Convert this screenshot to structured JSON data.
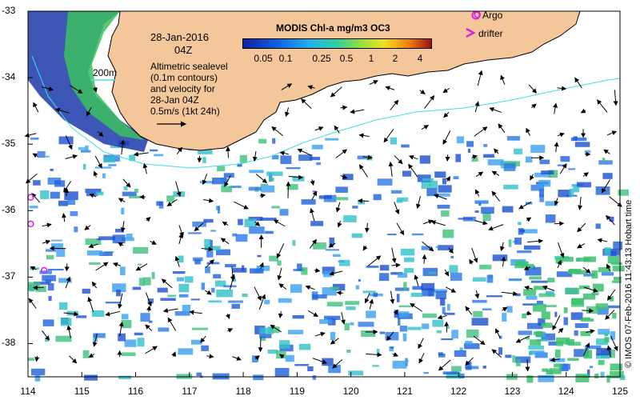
{
  "map": {
    "date_label": "28-Jan-2016",
    "time_label": "04Z",
    "contour_label": "200m",
    "description_lines": [
      "Altimetric sealevel",
      "(0.1m contours)",
      "and velocity for",
      "28-Jan 04Z",
      "0.5m/s (1kt 24h)"
    ],
    "colorbar_title": "MODIS Chl-a mg/m3 OC3",
    "colorbar_ticks": [
      "0.05",
      "0.1",
      "0.25",
      "0.5",
      "1",
      "2",
      "4"
    ],
    "legend_argo": "Argo",
    "legend_drifter": "drifter",
    "copyright": "© IMOS 07-Feb-2016 11:43:13 Hobart time",
    "lat_labels": [
      "-33",
      "-34",
      "-35",
      "-36",
      "-37",
      "-38"
    ],
    "lon_labels": [
      "114",
      "115",
      "116",
      "117",
      "118",
      "119",
      "120",
      "121",
      "122",
      "123",
      "124",
      "125"
    ],
    "colors": {
      "land": "#f4c79a",
      "coast_contour": "#40e0e0",
      "argo": "#e020e0",
      "arrow": "#000000"
    },
    "chart_data": {
      "type": "map",
      "lon_range": [
        114,
        125
      ],
      "lat_range": [
        -38.5,
        -33
      ],
      "argo_floats": [
        [
          114.05,
          -35.8
        ],
        [
          114.05,
          -36.2
        ],
        [
          114.3,
          -36.9
        ],
        [
          122.35,
          -33.05
        ]
      ]
    }
  }
}
